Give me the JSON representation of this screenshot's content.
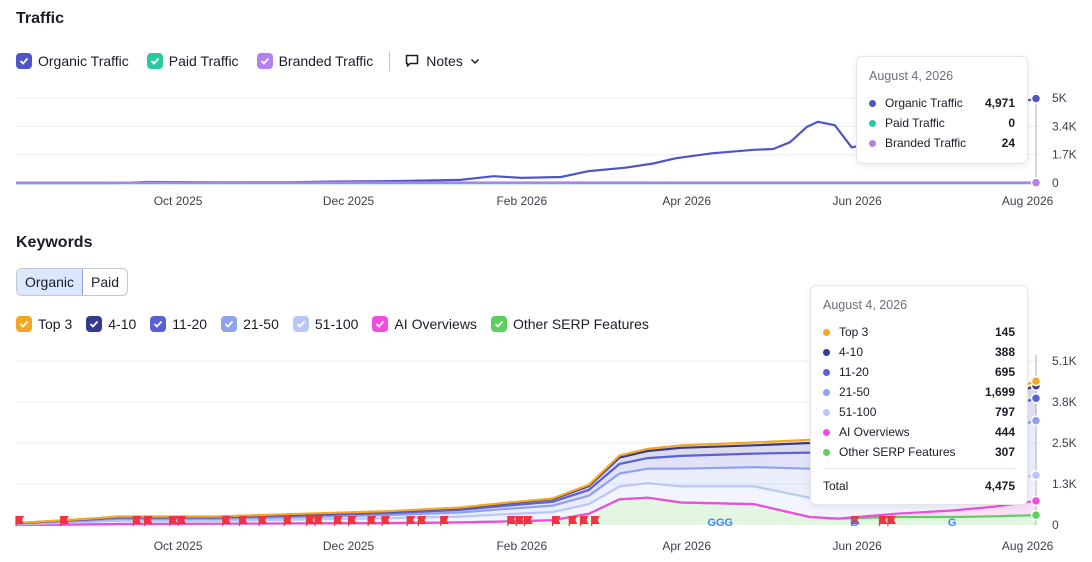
{
  "traffic": {
    "title": "Traffic",
    "legend": [
      {
        "label": "Organic Traffic",
        "color": "#4f55c6"
      },
      {
        "label": "Paid Traffic",
        "color": "#2ec8a0"
      },
      {
        "label": "Branded Traffic",
        "color": "#b47ff0"
      }
    ],
    "notes_label": "Notes",
    "tooltip": {
      "date": "August 4, 2026",
      "rows": [
        {
          "label": "Organic Traffic",
          "value": "4,971",
          "color": "#4f55c6"
        },
        {
          "label": "Paid Traffic",
          "value": "0",
          "color": "#2ec8a0"
        },
        {
          "label": "Branded Traffic",
          "value": "24",
          "color": "#b47ff0"
        }
      ]
    }
  },
  "keywords": {
    "title": "Keywords",
    "tabs": [
      "Organic",
      "Paid"
    ],
    "active_tab": "Organic",
    "legend": [
      {
        "label": "Top 3",
        "color": "#f5a623"
      },
      {
        "label": "4-10",
        "color": "#363a8f"
      },
      {
        "label": "11-20",
        "color": "#5a60d8"
      },
      {
        "label": "21-50",
        "color": "#8fa2ee"
      },
      {
        "label": "51-100",
        "color": "#b9c6f6"
      },
      {
        "label": "AI Overviews",
        "color": "#f04de0"
      },
      {
        "label": "Other SERP Features",
        "color": "#5ccf5c"
      }
    ],
    "tooltip": {
      "date": "August 4, 2026",
      "rows": [
        {
          "label": "Top 3",
          "value": "145",
          "color": "#f5a623"
        },
        {
          "label": "4-10",
          "value": "388",
          "color": "#363a8f"
        },
        {
          "label": "11-20",
          "value": "695",
          "color": "#5a60d8"
        },
        {
          "label": "21-50",
          "value": "1,699",
          "color": "#8fa2ee"
        },
        {
          "label": "51-100",
          "value": "797",
          "color": "#b9c6f6"
        },
        {
          "label": "AI Overviews",
          "value": "444",
          "color": "#f04de0"
        },
        {
          "label": "Other SERP Features",
          "value": "307",
          "color": "#5ccf5c"
        }
      ],
      "total_label": "Total",
      "total_value": "4,475"
    }
  },
  "chart_data": [
    {
      "type": "line",
      "title": "Traffic",
      "x_ticks": [
        "Oct 2025",
        "Dec 2025",
        "Feb 2026",
        "Apr 2026",
        "Jun 2026",
        "Aug 2026"
      ],
      "y_ticks": [
        "0",
        "1.7K",
        "3.4K",
        "5K"
      ],
      "ylim": [
        0,
        5000
      ],
      "grid": true,
      "x_range": [
        "2025-08-04",
        "2026-08-04"
      ],
      "series": [
        {
          "name": "Organic Traffic",
          "color": "#4f55c6",
          "points": [
            [
              "2025-08-04",
              0
            ],
            [
              "2025-09-10",
              0
            ],
            [
              "2025-09-20",
              60
            ],
            [
              "2025-10-20",
              40
            ],
            [
              "2025-11-10",
              50
            ],
            [
              "2025-11-25",
              80
            ],
            [
              "2025-12-20",
              120
            ],
            [
              "2026-01-10",
              180
            ],
            [
              "2026-01-22",
              400
            ],
            [
              "2026-02-01",
              300
            ],
            [
              "2026-02-15",
              350
            ],
            [
              "2026-02-25",
              700
            ],
            [
              "2026-03-10",
              900
            ],
            [
              "2026-03-20",
              1150
            ],
            [
              "2026-03-28",
              1450
            ],
            [
              "2026-04-10",
              1750
            ],
            [
              "2026-04-25",
              1950
            ],
            [
              "2026-05-02",
              2000
            ],
            [
              "2026-05-08",
              2400
            ],
            [
              "2026-05-14",
              3300
            ],
            [
              "2026-05-18",
              3600
            ],
            [
              "2026-05-24",
              3400
            ],
            [
              "2026-05-30",
              2100
            ],
            [
              "2026-06-06",
              2300
            ],
            [
              "2026-06-16",
              2300
            ],
            [
              "2026-06-26",
              2350
            ],
            [
              "2026-07-02",
              2700
            ],
            [
              "2026-07-06",
              4000
            ],
            [
              "2026-07-12",
              3900
            ],
            [
              "2026-07-20",
              4300
            ],
            [
              "2026-07-28",
              4700
            ],
            [
              "2026-08-04",
              4971
            ]
          ]
        },
        {
          "name": "Paid Traffic",
          "color": "#2ec8a0",
          "points": [
            [
              "2025-08-04",
              0
            ],
            [
              "2026-08-04",
              0
            ]
          ]
        },
        {
          "name": "Branded Traffic",
          "color": "#b47ff0",
          "points": [
            [
              "2025-08-04",
              15
            ],
            [
              "2026-08-04",
              24
            ]
          ]
        }
      ]
    },
    {
      "type": "area",
      "title": "Keywords",
      "x_ticks": [
        "Oct 2025",
        "Dec 2025",
        "Feb 2026",
        "Apr 2026",
        "Jun 2026",
        "Aug 2026"
      ],
      "y_ticks": [
        "0",
        "1.3K",
        "2.5K",
        "3.8K",
        "5.1K"
      ],
      "ylim": [
        0,
        5100
      ],
      "grid": true,
      "x_range": [
        "2025-08-04",
        "2026-08-04"
      ],
      "dates": [
        "2025-08-04",
        "2025-09-01",
        "2025-09-10",
        "2025-10-15",
        "2025-11-15",
        "2025-12-15",
        "2026-01-10",
        "2026-01-25",
        "2026-02-12",
        "2026-02-25",
        "2026-03-08",
        "2026-03-18",
        "2026-03-30",
        "2026-04-25",
        "2026-05-15",
        "2026-05-25",
        "2026-06-15",
        "2026-07-05",
        "2026-07-20",
        "2026-08-04"
      ],
      "series": [
        {
          "name": "Other SERP Features",
          "color": "#5ccf5c",
          "values": [
            0,
            20,
            30,
            40,
            50,
            60,
            80,
            110,
            150,
            350,
            800,
            850,
            700,
            650,
            250,
            200,
            250,
            250,
            270,
            307
          ]
        },
        {
          "name": "AI Overviews",
          "color": "#f04de0",
          "values": [
            0,
            0,
            0,
            0,
            0,
            0,
            0,
            0,
            0,
            0,
            0,
            0,
            0,
            0,
            0,
            0,
            100,
            200,
            300,
            444
          ]
        },
        {
          "name": "51-100",
          "color": "#b9c6f6",
          "values": [
            20,
            80,
            100,
            90,
            120,
            150,
            180,
            220,
            250,
            300,
            400,
            450,
            500,
            550,
            600,
            600,
            650,
            700,
            750,
            797
          ]
        },
        {
          "name": "21-50",
          "color": "#8fa2ee",
          "values": [
            20,
            50,
            60,
            60,
            80,
            100,
            130,
            160,
            200,
            260,
            400,
            450,
            550,
            600,
            900,
            1000,
            1200,
            1400,
            1550,
            1699
          ]
        },
        {
          "name": "11-20",
          "color": "#5a60d8",
          "values": [
            10,
            30,
            40,
            40,
            50,
            60,
            80,
            100,
            120,
            180,
            300,
            330,
            400,
            420,
            500,
            520,
            560,
            600,
            650,
            695
          ]
        },
        {
          "name": "4-10",
          "color": "#363a8f",
          "values": [
            5,
            20,
            30,
            30,
            40,
            50,
            60,
            70,
            80,
            120,
            200,
            220,
            250,
            260,
            300,
            310,
            330,
            350,
            370,
            388
          ]
        },
        {
          "name": "Top 3",
          "color": "#f5a623",
          "values": [
            0,
            5,
            5,
            5,
            10,
            10,
            15,
            20,
            25,
            40,
            60,
            70,
            80,
            85,
            100,
            105,
            115,
            125,
            135,
            145
          ]
        }
      ]
    }
  ]
}
